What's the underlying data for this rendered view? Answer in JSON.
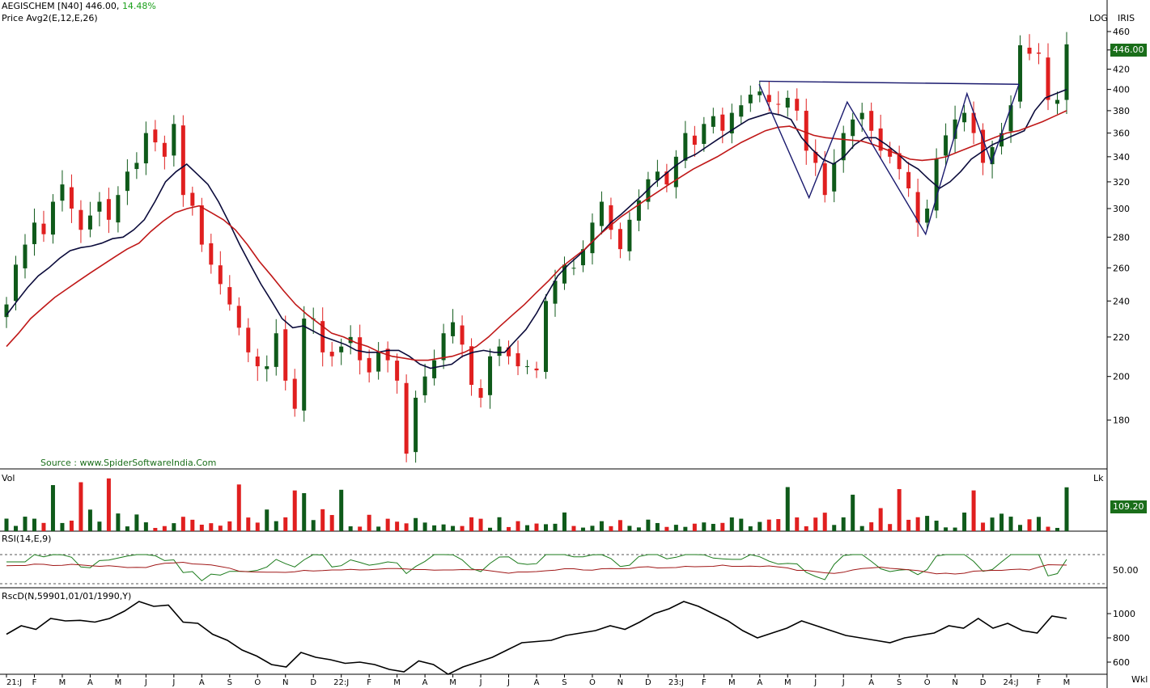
{
  "header": {
    "symbol": "AEGISCHEM [N40]",
    "last": "446.00,",
    "change": "14.48%",
    "studies": "Price  Avg2(E,12,E,26)",
    "log_label": "LOG",
    "iris_label": "IRIS",
    "source": "Source : www.SpiderSoftwareIndia.Com",
    "vol_label": "Vol",
    "lk_label": "Lk",
    "rsi_label": "RSI(14,E,9)",
    "rscd_label": "RscD(N,59901,01/01/1990,Y)",
    "wkl_label": "Wkl",
    "price_tag": "446.00",
    "vol_tag": "109.20"
  },
  "colors": {
    "up": "#0f5a1a",
    "down": "#e01f1f",
    "ema12": "#0b0b3b",
    "ema26": "#c01818",
    "pattern": "#1a1a6e",
    "tag": "#1a6e1a"
  },
  "chart_data": {
    "type": "candlestick",
    "title": "AEGISCHEM [N40]",
    "scale": "log",
    "ylim": [
      160,
      470
    ],
    "y_ticks": [
      180,
      200,
      220,
      240,
      260,
      280,
      300,
      320,
      340,
      360,
      380,
      400,
      420,
      440,
      460
    ],
    "x_tick_labels": [
      "21:J",
      "F",
      "M",
      "A",
      "M",
      "J",
      "J",
      "A",
      "S",
      "O",
      "N",
      "D",
      "22:J",
      "F",
      "M",
      "A",
      "M",
      "J",
      "J",
      "A",
      "S",
      "O",
      "N",
      "D",
      "23:J",
      "F",
      "M",
      "A",
      "M",
      "J",
      "J",
      "A",
      "S",
      "O",
      "N",
      "D",
      "24:J",
      "F",
      "M"
    ],
    "series": [
      {
        "name": "Price",
        "values": [
          238,
          262,
          275,
          290,
          282,
          305,
          318,
          300,
          285,
          295,
          305,
          292,
          310,
          328,
          335,
          360,
          352,
          340,
          368,
          310,
          302,
          275,
          262,
          250,
          238,
          225,
          212,
          205,
          205,
          222,
          198,
          185,
          230,
          230,
          212,
          210,
          215,
          220,
          208,
          202,
          212,
          208,
          198,
          166,
          190,
          200,
          208,
          222,
          228,
          216,
          196,
          190,
          210,
          215,
          210,
          205,
          205,
          203,
          240,
          252,
          262,
          260,
          272,
          290,
          305,
          285,
          272,
          292,
          306,
          322,
          328,
          318,
          340,
          360,
          350,
          368,
          375,
          362,
          378,
          385,
          395,
          398,
          388,
          386,
          392,
          380,
          345,
          335,
          310,
          335,
          360,
          372,
          378,
          362,
          345,
          340,
          330,
          315,
          290,
          300,
          338,
          358,
          372,
          378,
          360,
          335,
          348,
          360,
          385,
          445,
          436,
          436,
          390,
          390,
          446
        ]
      },
      {
        "name": "Avg2 EMA12",
        "values": [
          232,
          240,
          248,
          255,
          260,
          266,
          271,
          273,
          274,
          276,
          279,
          280,
          285,
          292,
          305,
          320,
          328,
          334,
          326,
          318,
          305,
          290,
          275,
          262,
          250,
          240,
          230,
          225,
          226,
          223,
          220,
          218,
          216,
          213,
          212,
          212,
          213,
          213,
          210,
          206,
          204,
          205,
          206,
          210,
          212,
          213,
          212,
          212,
          218,
          224,
          233,
          244,
          255,
          262,
          268,
          275,
          282,
          290,
          296,
          303,
          310,
          318,
          325,
          332,
          338,
          342,
          348,
          354,
          360,
          366,
          372,
          375,
          378,
          376,
          372,
          356,
          346,
          338,
          334,
          340,
          350,
          356,
          356,
          350,
          343,
          335,
          330,
          322,
          315,
          320,
          328,
          338,
          344,
          350,
          354,
          358,
          362,
          380,
          392,
          396,
          400
        ]
      },
      {
        "name": "Avg2 EMA26",
        "values": [
          215,
          222,
          230,
          236,
          242,
          247,
          252,
          257,
          262,
          267,
          272,
          276,
          284,
          291,
          297,
          300,
          302,
          297,
          292,
          285,
          275,
          264,
          255,
          246,
          238,
          232,
          227,
          222,
          220,
          217,
          215,
          212,
          210,
          209,
          208,
          208,
          209,
          210,
          212,
          215,
          220,
          226,
          232,
          238,
          245,
          252,
          260,
          266,
          272,
          280,
          287,
          294,
          300,
          306,
          312,
          318,
          324,
          330,
          335,
          340,
          346,
          352,
          357,
          362,
          365,
          366,
          362,
          358,
          356,
          355,
          354,
          353,
          350,
          346,
          342,
          338,
          337,
          338,
          340,
          344,
          348,
          352,
          356,
          360,
          362,
          366,
          370,
          375,
          380
        ]
      },
      {
        "name": "Vol",
        "values": []
      },
      {
        "name": "RSI(14,E,9)",
        "values": []
      },
      {
        "name": "RscD(N,59901,01/01/1990,Y)",
        "values": [
          830,
          900,
          870,
          960,
          940,
          945,
          930,
          960,
          1020,
          1100,
          1060,
          1070,
          930,
          920,
          830,
          780,
          700,
          650,
          580,
          560,
          680,
          640,
          620,
          590,
          600,
          580,
          540,
          520,
          610,
          580,
          500,
          560,
          600,
          640,
          700,
          760,
          770,
          780,
          820,
          840,
          860,
          900,
          870,
          930,
          1000,
          1040,
          1100,
          1060,
          1000,
          940,
          860,
          800,
          840,
          880,
          940,
          900,
          860,
          820,
          800,
          780,
          760,
          800,
          820,
          840,
          900,
          880,
          960,
          880,
          920,
          860,
          840,
          980,
          960
        ]
      }
    ],
    "rsi_ticks": [
      50.0
    ],
    "rscd_ticks": [
      600,
      800,
      1000
    ]
  }
}
